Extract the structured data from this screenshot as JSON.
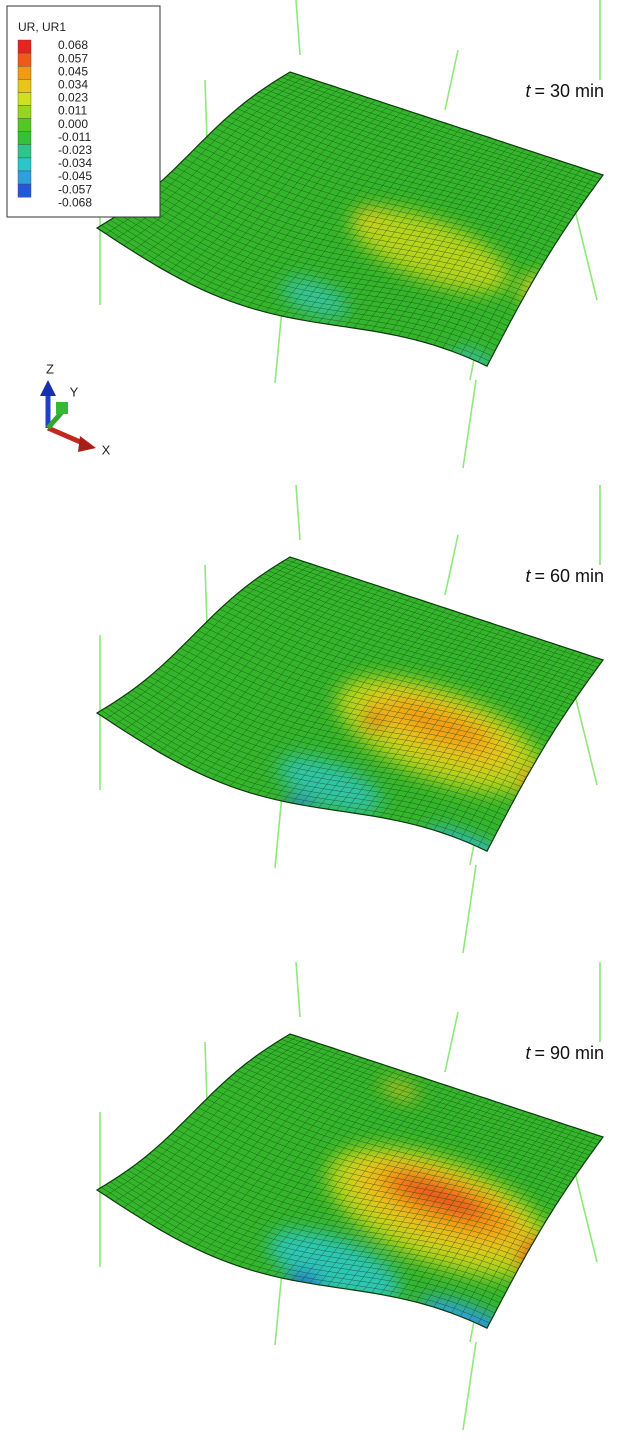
{
  "legend": {
    "title": "UR, UR1",
    "labels": [
      "0.068",
      "0.057",
      "0.045",
      "0.034",
      "0.023",
      "0.011",
      "0.000",
      "-0.011",
      "-0.023",
      "-0.034",
      "-0.045",
      "-0.057",
      "-0.068"
    ],
    "colors": [
      "#e8231c",
      "#f05a18",
      "#f39a14",
      "#e9c51b",
      "#cfe01d",
      "#97d61f",
      "#53c823",
      "#35c03a",
      "#2fc58d",
      "#2cc5c9",
      "#2da1df",
      "#2356d8"
    ]
  },
  "triad": {
    "z": "Z",
    "y": "Y",
    "x": "X"
  },
  "panels": [
    {
      "variable": "t",
      "label": "= 30 min"
    },
    {
      "variable": "t",
      "label": "= 60 min"
    },
    {
      "variable": "t",
      "label": "= 90 min"
    }
  ]
}
